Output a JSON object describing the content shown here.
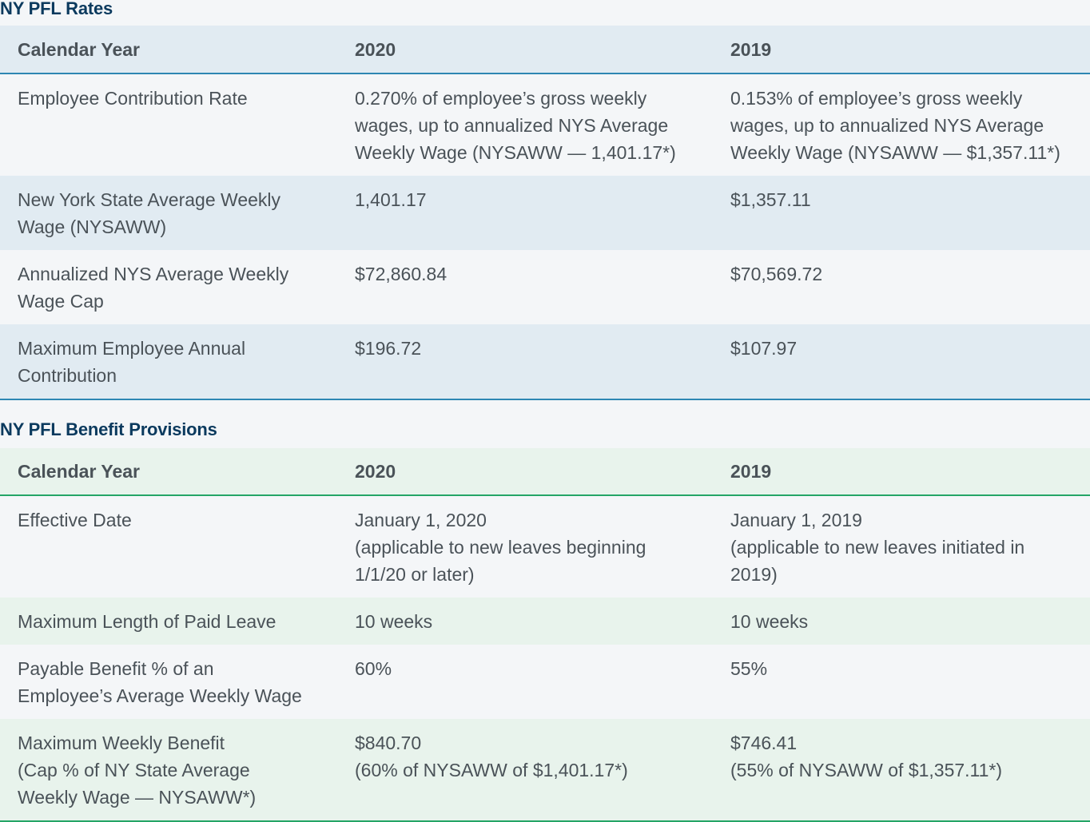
{
  "rates": {
    "title": "NY PFL Rates",
    "headers": [
      "Calendar Year",
      "2020",
      "2019"
    ],
    "rows": [
      {
        "label": [
          "Employee Contribution Rate"
        ],
        "y2020": [
          "0.270% of employee’s gross weekly",
          "wages, up to annualized NYS Average",
          "Weekly Wage (NYSAWW — 1,401.17*)"
        ],
        "y2019": [
          "0.153% of employee’s gross weekly",
          "wages, up to annualized NYS Average",
          "Weekly Wage (NYSAWW — $1,357.11*)"
        ]
      },
      {
        "label": [
          "New York State Average Weekly",
          "Wage (NYSAWW)"
        ],
        "y2020": [
          "1,401.17"
        ],
        "y2019": [
          "$1,357.11"
        ]
      },
      {
        "label": [
          "Annualized NYS Average Weekly",
          "Wage Cap"
        ],
        "y2020": [
          "$72,860.84"
        ],
        "y2019": [
          "$70,569.72"
        ]
      },
      {
        "label": [
          "Maximum Employee Annual",
          "Contribution"
        ],
        "y2020": [
          "$196.72"
        ],
        "y2019": [
          "$107.97"
        ]
      }
    ]
  },
  "benefits": {
    "title": "NY PFL Benefit Provisions",
    "headers": [
      "Calendar Year",
      "2020",
      "2019"
    ],
    "rows": [
      {
        "label": [
          "Effective Date"
        ],
        "y2020": [
          "January 1, 2020",
          "(applicable to new leaves beginning",
          "1/1/20 or later)"
        ],
        "y2019": [
          "January 1, 2019",
          "(applicable to new leaves initiated in",
          "2019)"
        ]
      },
      {
        "label": [
          "Maximum Length of Paid Leave"
        ],
        "y2020": [
          "10 weeks"
        ],
        "y2019": [
          "10 weeks"
        ]
      },
      {
        "label": [
          "Payable Benefit % of an",
          "Employee’s Average Weekly Wage"
        ],
        "y2020": [
          "60%"
        ],
        "y2019": [
          "55%"
        ]
      },
      {
        "label": [
          "Maximum Weekly Benefit",
          "(Cap % of NY State Average",
          "Weekly Wage — NYSAWW*)"
        ],
        "y2020": [
          "$840.70",
          "(60% of NYSAWW of $1,401.17*)"
        ],
        "y2019": [
          "$746.41",
          "(55% of NYSAWW of $1,357.11*)"
        ]
      }
    ]
  }
}
